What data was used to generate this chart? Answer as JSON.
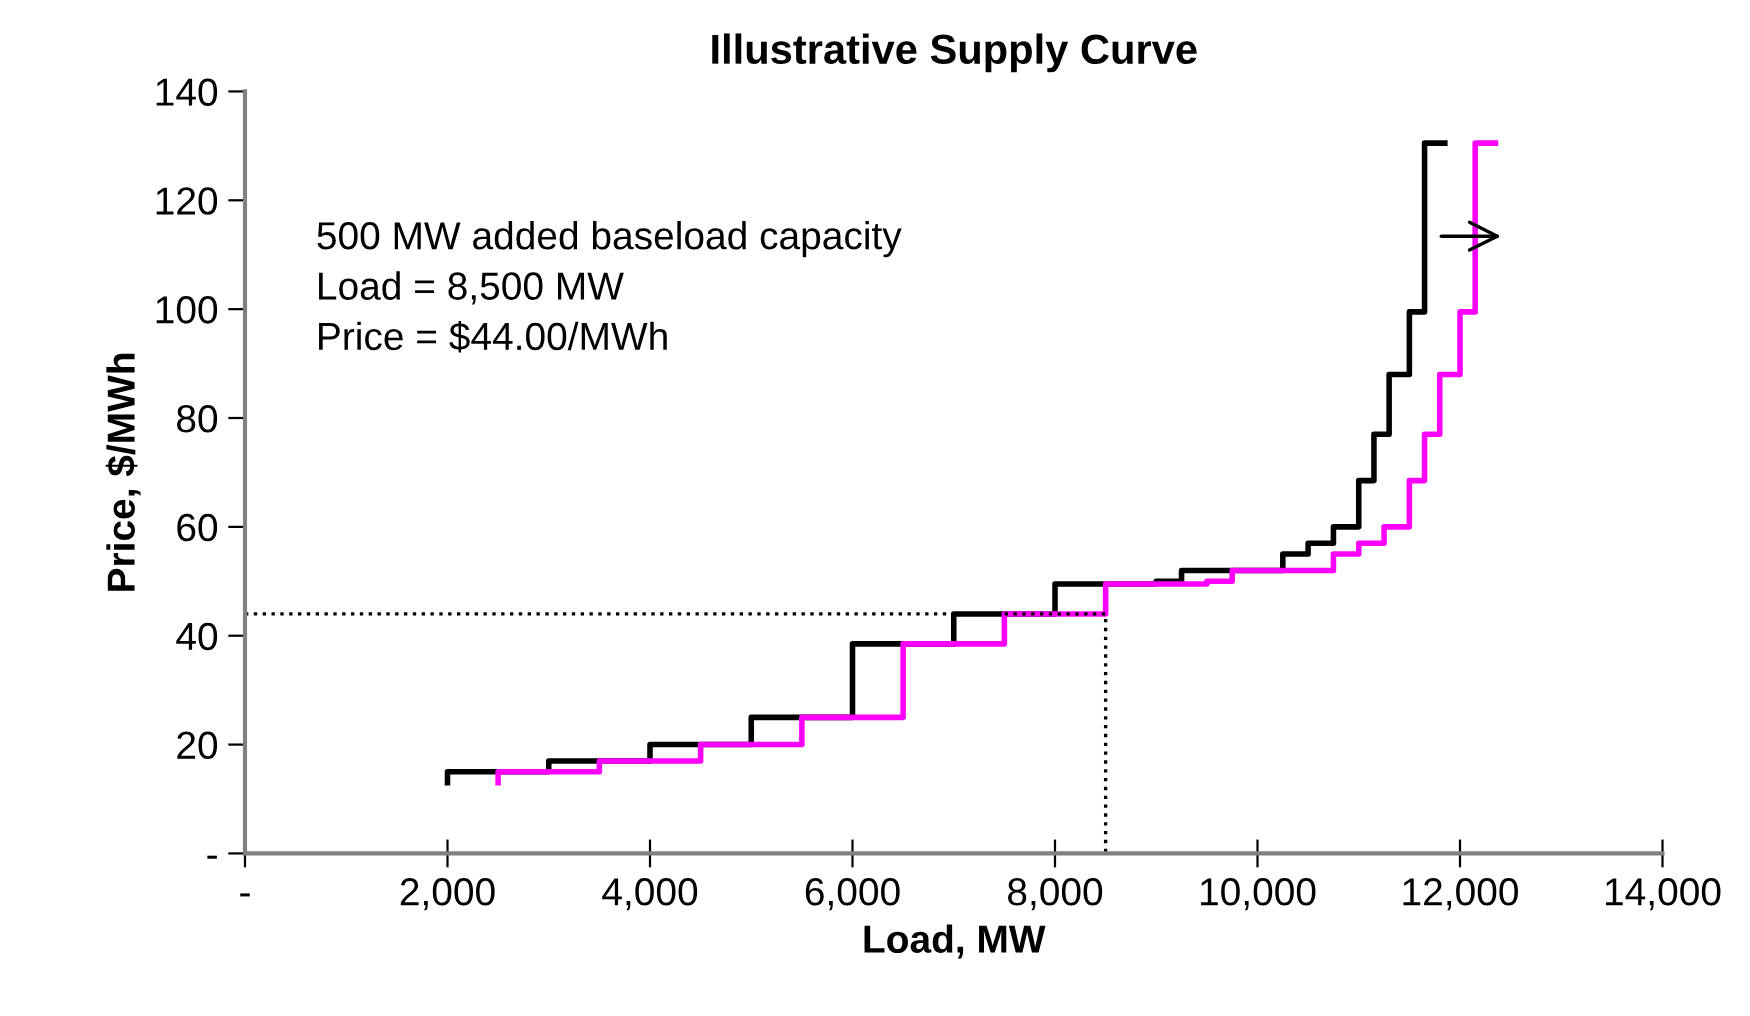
{
  "chart_data": {
    "type": "step",
    "title": "Illustrative Supply Curve",
    "xlabel": "Load, MW",
    "ylabel": "Price, $/MWh",
    "annotations": [
      "500 MW added baseload capacity\nLoad = 8,500 MW\nPrice = $44.00/MWh"
    ],
    "series": [
      {
        "color": "#000000",
        "x": [
          2000,
          2000,
          3000,
          4000,
          5000,
          6000,
          7000,
          8000,
          9000,
          9250,
          10250,
          10500,
          10750,
          11000,
          11150,
          11300,
          11500,
          11650,
          11850
        ],
        "values": [
          13,
          15,
          17,
          20,
          25,
          38.5,
          44,
          49.5,
          50,
          52,
          55,
          57,
          60,
          68.5,
          77,
          88,
          99.5,
          130.5,
          130.5
        ]
      },
      {
        "color": "#ff00ff",
        "x": [
          2500,
          2500,
          3500,
          4500,
          5500,
          6500,
          7500,
          8500,
          9500,
          9750,
          10750,
          11000,
          11250,
          11500,
          11650,
          11800,
          12000,
          12150,
          12350
        ],
        "values": [
          13,
          15,
          17,
          20,
          25,
          38.5,
          44,
          49.5,
          50,
          52,
          55,
          57,
          60,
          68.5,
          77,
          88,
          99.5,
          130.5,
          130.5
        ]
      },
      {
        "type": "line",
        "color": "#000000",
        "line_style": "dotted",
        "x": [
          0,
          8500,
          8500
        ],
        "values": [
          44,
          44,
          0
        ]
      }
    ],
    "xlim": [
      0,
      14000
    ],
    "ylim": [
      0,
      140
    ],
    "xticks": [
      {
        "value": 0,
        "label": "-"
      },
      {
        "value": 2000,
        "label": "2,000"
      },
      {
        "value": 4000,
        "label": "4,000"
      },
      {
        "value": 6000,
        "label": "6,000"
      },
      {
        "value": 8000,
        "label": "8,000"
      },
      {
        "value": 10000,
        "label": "10,000"
      },
      {
        "value": 12000,
        "label": "12,000"
      },
      {
        "value": 14000,
        "label": "14,000"
      }
    ],
    "yticks": [
      {
        "value": 0,
        "label": "-"
      },
      20,
      40,
      60,
      80,
      100,
      120,
      140
    ],
    "grid": false,
    "legend": false
  }
}
